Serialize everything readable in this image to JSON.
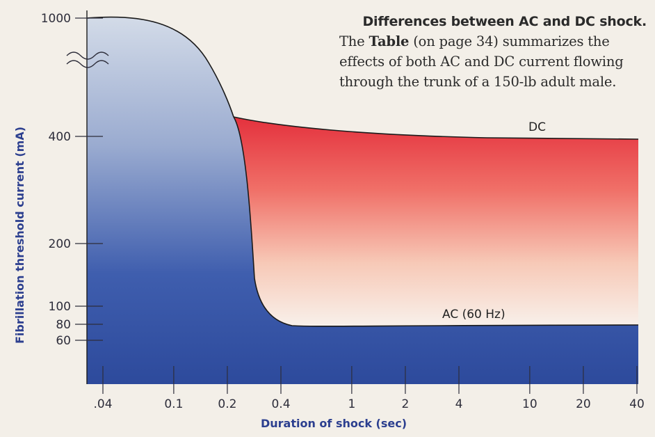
{
  "caption": {
    "title": "Differences between AC and DC shock.",
    "lines": [
      {
        "pre": "The ",
        "bold": "Table",
        "post": " (on page 34) summarizes the"
      },
      {
        "pre": "effects of both AC and DC current flowing",
        "bold": "",
        "post": ""
      },
      {
        "pre": "through the trunk of a 150-lb adult male.",
        "bold": "",
        "post": ""
      }
    ]
  },
  "chart_data": {
    "type": "area",
    "xlabel": "Duration of shock (sec)",
    "ylabel": "Fibrillation threshold current (mA)",
    "x_ticks": [
      ".04",
      "0.1",
      "0.2",
      "0.4",
      "1",
      "2",
      "4",
      "10",
      "20",
      "40"
    ],
    "x_tick_values": [
      0.04,
      0.1,
      0.2,
      0.4,
      1,
      2,
      4,
      10,
      20,
      40
    ],
    "y_ticks": [
      "1000",
      "400",
      "200",
      "100",
      "80",
      "60"
    ],
    "y_tick_values": [
      1000,
      400,
      200,
      100,
      80,
      60
    ],
    "y_axis_break": true,
    "x_scale": "log",
    "y_scale": "non-linear (broken axis)",
    "series": [
      {
        "name": "DC",
        "x": [
          0.2,
          0.4,
          1,
          2,
          4,
          10,
          20,
          40
        ],
        "y": [
          430,
          415,
          405,
          400,
          400,
          400,
          400,
          400
        ]
      },
      {
        "name": "AC (60 Hz)",
        "x": [
          0.03,
          0.06,
          0.1,
          0.15,
          0.2,
          0.22,
          0.25,
          0.3,
          0.4,
          1,
          2,
          4,
          10,
          20,
          40
        ],
        "y": [
          1000,
          990,
          900,
          650,
          420,
          250,
          140,
          95,
          82,
          80,
          80,
          80,
          80,
          80,
          80
        ]
      }
    ],
    "colors": {
      "background": "#f3efe8",
      "ac_top": "#c8d2e3",
      "ac_bottom": "#2f4ea2",
      "dc_top": "#e8323e",
      "dc_bottom": "#f7f2ec",
      "axis_title": "#2c3f8f"
    },
    "grid": false
  }
}
